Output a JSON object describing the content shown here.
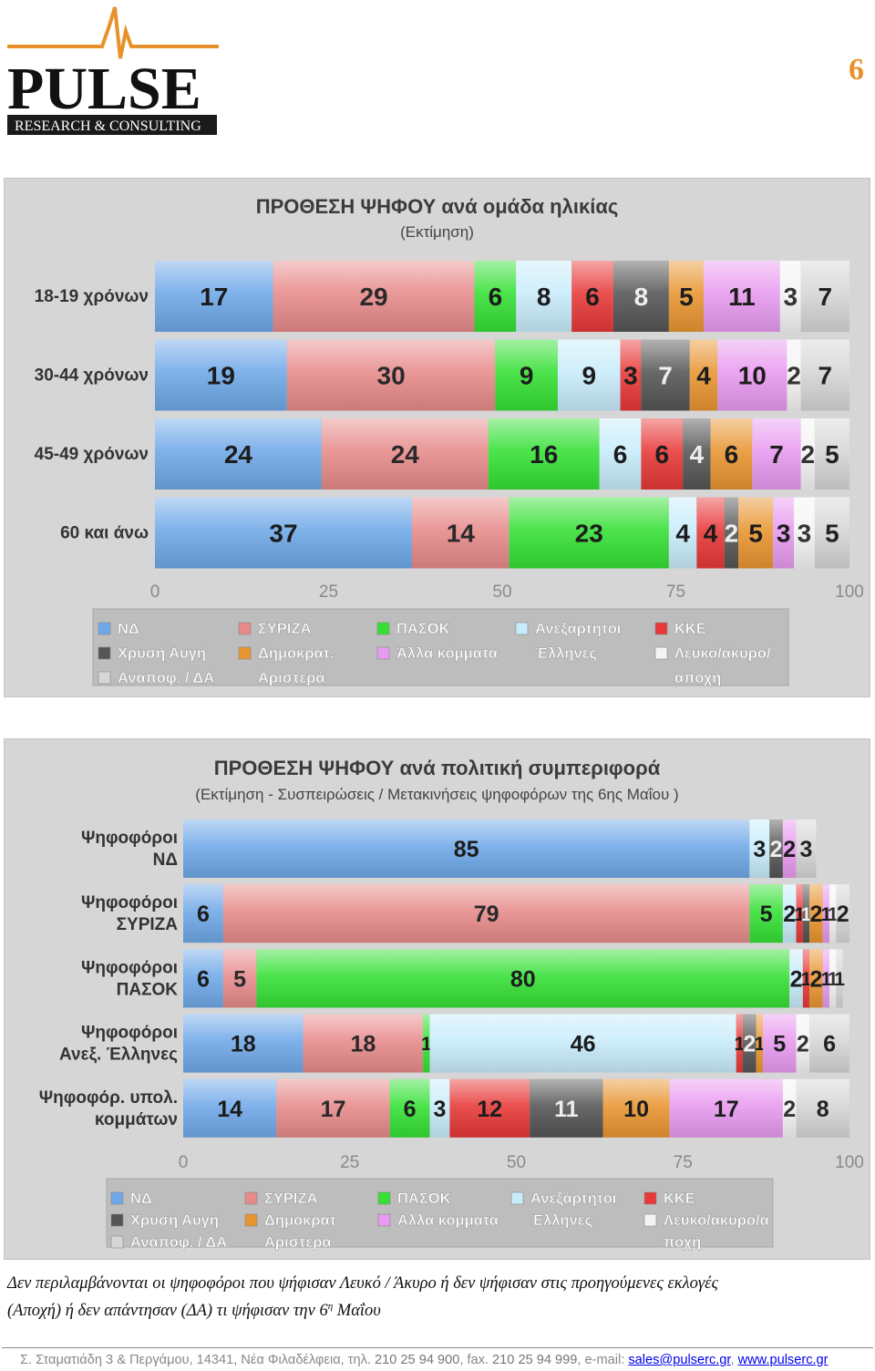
{
  "header": {
    "logo_text": "PULSE",
    "logo_subtitle": "RESEARCH & CONSULTING",
    "page_number": "6"
  },
  "colors": {
    "logo_orange": "#e8912a",
    "nd": "#6fa8e8",
    "syriza": "#e78a8a",
    "pasok": "#35e035",
    "anel": "#c8ecfb",
    "kke": "#e83838",
    "xa": "#555555",
    "dimar": "#e89530",
    "other": "#e89af0",
    "blank": "#f4f4f4",
    "undecided": "#d6d6d6"
  },
  "legend": [
    {
      "key": "nd",
      "label": "ΝΔ"
    },
    {
      "key": "syriza",
      "label": "ΣΥΡΙΖΑ"
    },
    {
      "key": "pasok",
      "label": "ΠΑΣΟΚ"
    },
    {
      "key": "anel",
      "label": "Ανεξάρτητοι Έλληνες"
    },
    {
      "key": "kke",
      "label": "ΚΚΕ"
    },
    {
      "key": "xa",
      "label": "Χρυσή Αυγή"
    },
    {
      "key": "dimar",
      "label": "Δημοκρατ. Αριστερά"
    },
    {
      "key": "other",
      "label": "Άλλα κόμματα"
    },
    {
      "key": "blank",
      "label": "Λευκό/άκυρο/ αποχή"
    },
    {
      "key": "undecided",
      "label": "Αναποφ. / ΔΑ"
    }
  ],
  "chart_data": [
    {
      "type": "bar",
      "orientation": "horizontal",
      "stacked": true,
      "title": "ΠΡΟΘΕΣΗ ΨΗΦΟΥ ανά ομάδα ηλικίας",
      "subtitle": "(Εκτίμηση)",
      "categories": [
        "18-19 χρόνων",
        "30-44 χρόνων",
        "45-49 χρόνων",
        "60 και άνω"
      ],
      "xlim": [
        0,
        100
      ],
      "x_ticks": [
        "0",
        "25",
        "50",
        "75",
        "100"
      ],
      "legend_position": "bottom",
      "series": [
        {
          "name": "ΝΔ",
          "key": "nd",
          "values": [
            17,
            19,
            24,
            37
          ]
        },
        {
          "name": "ΣΥΡΙΖΑ",
          "key": "syriza",
          "values": [
            29,
            30,
            24,
            14
          ]
        },
        {
          "name": "ΠΑΣΟΚ",
          "key": "pasok",
          "values": [
            6,
            9,
            16,
            23
          ]
        },
        {
          "name": "Ανεξάρτητοι Έλληνες",
          "key": "anel",
          "values": [
            8,
            9,
            6,
            4
          ]
        },
        {
          "name": "ΚΚΕ",
          "key": "kke",
          "values": [
            6,
            3,
            6,
            4
          ]
        },
        {
          "name": "Χρυσή Αυγή",
          "key": "xa",
          "values": [
            8,
            7,
            4,
            2
          ]
        },
        {
          "name": "Δημοκρατ. Αριστερά",
          "key": "dimar",
          "values": [
            5,
            4,
            6,
            5
          ]
        },
        {
          "name": "Άλλα κόμματα",
          "key": "other",
          "values": [
            11,
            10,
            7,
            3
          ]
        },
        {
          "name": "Λευκό/άκυρο/ αποχή",
          "key": "blank",
          "values": [
            3,
            2,
            2,
            3
          ]
        },
        {
          "name": "Αναποφ. / ΔΑ",
          "key": "undecided",
          "values": [
            7,
            7,
            5,
            5
          ]
        }
      ]
    },
    {
      "type": "bar",
      "orientation": "horizontal",
      "stacked": true,
      "title": "ΠΡΟΘΕΣΗ ΨΗΦΟΥ ανά πολιτική συμπεριφορά",
      "subtitle": "(Εκτίμηση - Συσπειρώσεις / Μετακινήσεις ψηφοφόρων της 6ης Μαΐου )",
      "categories": [
        "Ψηφοφόροι ΝΔ",
        "Ψηφοφόροι ΣΥΡΙΖΑ",
        "Ψηφοφόροι ΠΑΣΟΚ",
        "Ψηφοφόροι Ανεξ. Έλληνες",
        "Ψηφοφόρ. υπολ. κομμάτων"
      ],
      "xlim": [
        0,
        100
      ],
      "x_ticks": [
        "0",
        "25",
        "50",
        "75",
        "100"
      ],
      "legend_position": "bottom",
      "series": [
        {
          "name": "ΝΔ",
          "key": "nd",
          "values": [
            85,
            6,
            6,
            18,
            14
          ]
        },
        {
          "name": "ΣΥΡΙΖΑ",
          "key": "syriza",
          "values": [
            0,
            79,
            5,
            18,
            17
          ]
        },
        {
          "name": "ΠΑΣΟΚ",
          "key": "pasok",
          "values": [
            0,
            5,
            80,
            1,
            6
          ]
        },
        {
          "name": "Ανεξάρτητοι Έλληνες",
          "key": "anel",
          "values": [
            3,
            2,
            2,
            46,
            3
          ]
        },
        {
          "name": "ΚΚΕ",
          "key": "kke",
          "values": [
            0,
            1,
            1,
            1,
            12
          ]
        },
        {
          "name": "Χρυσή Αυγή",
          "key": "xa",
          "values": [
            2,
            1,
            0,
            2,
            11
          ]
        },
        {
          "name": "Δημοκρατ. Αριστερά",
          "key": "dimar",
          "values": [
            0,
            2,
            2,
            1,
            10
          ]
        },
        {
          "name": "Άλλα κόμματα",
          "key": "other",
          "values": [
            2,
            1,
            1,
            5,
            17
          ]
        },
        {
          "name": "Λευκό/άκυρο/ αποχή",
          "key": "blank",
          "values": [
            0,
            1,
            1,
            2,
            2
          ]
        },
        {
          "name": "Αναποφ. / ΔΑ",
          "key": "undecided",
          "values": [
            3,
            2,
            1,
            6,
            8
          ]
        }
      ]
    }
  ],
  "footnote": {
    "line1": "Δεν περιλαμβάνονται οι ψηφοφόροι που ψήφισαν Λευκό / Άκυρο ή δεν ψήφισαν στις προηγούμενες εκλογές",
    "line2_start": "(Αποχή) ή δεν απάντησαν (ΔΑ) τι ψήφισαν την 6",
    "line2_sup": "η",
    "line2_end": " Μαΐου"
  },
  "footer": {
    "address": "Σ. Σταματιάδη 3  &  Περγάμου,  14341,  Νέα Φιλαδέλφεια,  τηλ. ",
    "phone": "210 25 94 900",
    "fax_label": ",  fax. ",
    "fax": "210 25 94 999",
    "email_label": ",  e-mail: ",
    "email": "sales@pulserc.gr",
    "sep": ", ",
    "website": "www.pulserc.gr"
  }
}
